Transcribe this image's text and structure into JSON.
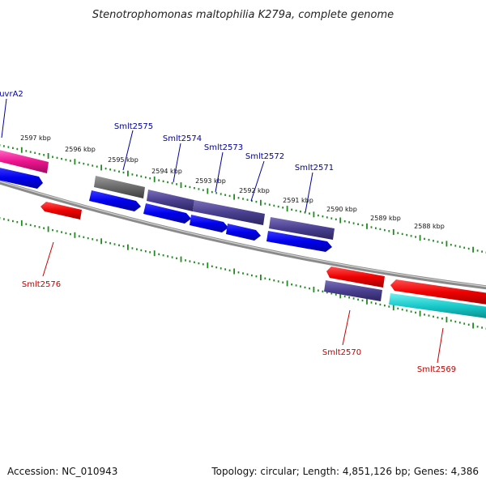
{
  "title": "Stenotrophomonas maltophilia K279a, complete genome",
  "footer": {
    "accession": "Accession: NC_010943",
    "summary": "Topology: circular; Length: 4,851,126 bp; Genes: 4,386"
  },
  "colors": {
    "forward_label": "#00009a",
    "reverse_label": "#c80000",
    "backbone": "#8a8a8a",
    "tick_dots": "#1f8c1f"
  },
  "position_ticks": [
    "2597 kbp",
    "2596 kbp",
    "2595 kbp",
    "2594 kbp",
    "2593 kbp",
    "2592 kbp",
    "2591 kbp",
    "2590 kbp",
    "2589 kbp",
    "2588 kbp"
  ],
  "gene_labels": {
    "forward": [
      "uvrA2",
      "Smlt2575",
      "Smlt2574",
      "Smlt2573",
      "Smlt2572",
      "Smlt2571"
    ],
    "reverse": [
      "Smlt2576",
      "Smlt2570",
      "Smlt2569"
    ]
  }
}
